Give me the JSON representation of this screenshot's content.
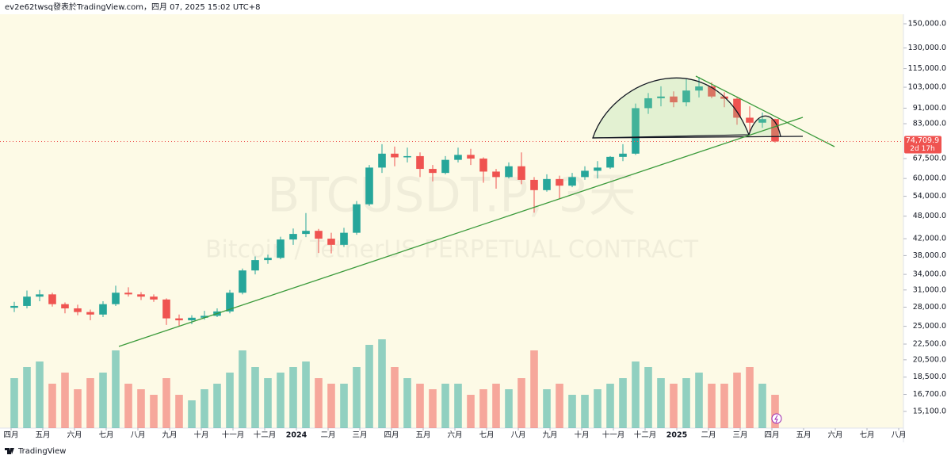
{
  "header": "ev2e62twsq發表於TradingView.com，四月 07, 2025 15:02 UTC+8",
  "footer": "TradingView",
  "chart_data": {
    "type": "candlestick",
    "symbol_watermark": "BTCUSDT.P, 3天",
    "description_watermark": "Bitcoin / TetherUS PERPETUAL CONTRACT",
    "x": [
      0.1,
      0.5,
      0.9,
      1.3,
      1.7,
      2.1,
      2.5,
      2.9,
      3.3,
      3.7,
      4.1,
      4.5,
      4.9,
      5.3,
      5.7,
      6.1,
      6.5,
      6.9,
      7.3,
      7.7,
      8.1,
      8.5,
      8.9,
      9.3,
      9.7,
      10.1,
      10.5,
      10.9,
      11.3,
      11.7,
      12.1,
      12.5,
      12.9,
      13.3,
      13.7,
      14.1,
      14.5,
      14.9,
      15.3,
      15.7,
      16.1,
      16.5,
      16.9,
      17.3,
      17.7,
      18.1,
      18.5,
      18.9,
      19.3,
      19.7,
      20.1,
      20.5,
      20.9,
      21.3,
      21.7,
      22.1,
      22.5,
      22.9,
      23.3,
      23.7,
      24.1
    ],
    "open": [
      27900,
      28200,
      29800,
      30200,
      28500,
      27800,
      27200,
      26800,
      28500,
      30500,
      30200,
      29800,
      29300,
      26200,
      25900,
      26300,
      26600,
      27300,
      30500,
      34800,
      37000,
      37500,
      41800,
      43200,
      44000,
      42000,
      40500,
      43500,
      51500,
      64000,
      69500,
      68000,
      68500,
      63500,
      62000,
      67000,
      69000,
      67500,
      62500,
      60500,
      64500,
      59500,
      56000,
      59800,
      57500,
      60500,
      62800,
      64000,
      68200,
      69500,
      91000,
      96500,
      97500,
      94200,
      101000,
      103500,
      97500,
      96200,
      86000,
      83500,
      85300
    ],
    "high": [
      28900,
      30900,
      31000,
      30500,
      28800,
      28400,
      27600,
      29000,
      31800,
      31500,
      30600,
      30200,
      29500,
      26800,
      26700,
      27400,
      27800,
      31000,
      35200,
      37800,
      38200,
      42500,
      44600,
      48900,
      44500,
      43500,
      44800,
      52500,
      65000,
      73500,
      72500,
      72000,
      70000,
      65000,
      68500,
      72000,
      71500,
      68000,
      63500,
      66000,
      70000,
      60500,
      61500,
      61000,
      62000,
      64500,
      66500,
      68500,
      73500,
      93500,
      99500,
      103600,
      100500,
      108300,
      109500,
      106000,
      100000,
      97500,
      92000,
      88700,
      85500
    ],
    "low": [
      27200,
      27800,
      29000,
      28100,
      27000,
      26700,
      25900,
      26400,
      28200,
      29800,
      29200,
      28900,
      25200,
      25000,
      25300,
      26000,
      26400,
      27000,
      30200,
      34000,
      36200,
      37200,
      40500,
      42400,
      38600,
      38500,
      40000,
      43000,
      51000,
      62000,
      64500,
      66000,
      60500,
      59000,
      61500,
      66000,
      65000,
      58500,
      56500,
      60000,
      58000,
      49000,
      55500,
      53000,
      57000,
      59500,
      60000,
      63500,
      66500,
      69000,
      88000,
      92000,
      91500,
      92000,
      97000,
      96500,
      91500,
      82500,
      78300,
      81000,
      74200
    ],
    "close": [
      28200,
      29800,
      30200,
      28500,
      27800,
      27200,
      26800,
      28500,
      30500,
      30200,
      29800,
      29300,
      26200,
      25900,
      26300,
      26600,
      27300,
      30500,
      34800,
      37000,
      37500,
      41800,
      43200,
      44000,
      42000,
      40500,
      43500,
      51500,
      64000,
      69500,
      68000,
      68500,
      63500,
      62000,
      67000,
      69000,
      67500,
      62500,
      60500,
      64500,
      59500,
      56000,
      59800,
      57500,
      60500,
      62800,
      64000,
      68200,
      69500,
      91000,
      96500,
      97500,
      94200,
      101000,
      103500,
      97500,
      96200,
      86000,
      83500,
      85300,
      74709.9
    ],
    "volume": [
      45,
      55,
      60,
      40,
      50,
      35,
      45,
      50,
      70,
      40,
      35,
      30,
      45,
      30,
      25,
      35,
      40,
      50,
      70,
      55,
      45,
      50,
      55,
      60,
      45,
      40,
      40,
      55,
      75,
      80,
      55,
      45,
      40,
      35,
      40,
      40,
      30,
      35,
      40,
      35,
      45,
      70,
      35,
      40,
      30,
      30,
      35,
      40,
      45,
      60,
      55,
      45,
      40,
      45,
      50,
      40,
      40,
      50,
      55,
      40,
      30
    ],
    "volume_lim": [
      0,
      100
    ],
    "up_color": "#26a69a",
    "down_color": "#ef5350",
    "xlim": [
      -0.35,
      28.15
    ],
    "xticks": [
      {
        "value": 0,
        "label": "四月"
      },
      {
        "value": 1,
        "label": "五月"
      },
      {
        "value": 2,
        "label": "六月"
      },
      {
        "value": 3,
        "label": "七月"
      },
      {
        "value": 4,
        "label": "八月"
      },
      {
        "value": 5,
        "label": "九月"
      },
      {
        "value": 6,
        "label": "十月"
      },
      {
        "value": 7,
        "label": "十一月"
      },
      {
        "value": 8,
        "label": "十二月"
      },
      {
        "value": 9,
        "label": "2024"
      },
      {
        "value": 10,
        "label": "二月"
      },
      {
        "value": 11,
        "label": "三月"
      },
      {
        "value": 12,
        "label": "四月"
      },
      {
        "value": 13,
        "label": "五月"
      },
      {
        "value": 14,
        "label": "六月"
      },
      {
        "value": 15,
        "label": "七月"
      },
      {
        "value": 16,
        "label": "八月"
      },
      {
        "value": 17,
        "label": "九月"
      },
      {
        "value": 18,
        "label": "十月"
      },
      {
        "value": 19,
        "label": "十一月"
      },
      {
        "value": 20,
        "label": "十二月"
      },
      {
        "value": 21,
        "label": "2025"
      },
      {
        "value": 22,
        "label": "二月"
      },
      {
        "value": 23,
        "label": "三月"
      },
      {
        "value": 24,
        "label": "四月"
      },
      {
        "value": 25,
        "label": "五月"
      },
      {
        "value": 26,
        "label": "六月"
      },
      {
        "value": 27,
        "label": "七月"
      },
      {
        "value": 28,
        "label": "八月"
      }
    ],
    "ylim": [
      13680,
      158690
    ],
    "log_y": true,
    "yticks": [
      {
        "value": 150000,
        "label": "150,000.0"
      },
      {
        "value": 130000,
        "label": "130,000.0"
      },
      {
        "value": 115000,
        "label": "115,000.0"
      },
      {
        "value": 103000,
        "label": "103,000.0"
      },
      {
        "value": 91000,
        "label": "91,000.0"
      },
      {
        "value": 83000,
        "label": "83,000.0"
      },
      {
        "value": 67500,
        "label": "67,500.0"
      },
      {
        "value": 60000,
        "label": "60,000.0"
      },
      {
        "value": 54000,
        "label": "54,000.0"
      },
      {
        "value": 48000,
        "label": "48,000.0"
      },
      {
        "value": 42000,
        "label": "42,000.0"
      },
      {
        "value": 38000,
        "label": "38,000.0"
      },
      {
        "value": 34000,
        "label": "34,000.0"
      },
      {
        "value": 31000,
        "label": "31,000.0"
      },
      {
        "value": 28000,
        "label": "28,000.0"
      },
      {
        "value": 25000,
        "label": "25,000.0"
      },
      {
        "value": 22500,
        "label": "22,500.0"
      },
      {
        "value": 20500,
        "label": "20,500.0"
      },
      {
        "value": 18500,
        "label": "18,500.0"
      },
      {
        "value": 16700,
        "label": "16,700.0"
      },
      {
        "value": 15100,
        "label": "15,100.0"
      }
    ],
    "last_price": {
      "value": 74709.9,
      "label": "74,709.9"
    },
    "countdown": "2d 17h"
  }
}
